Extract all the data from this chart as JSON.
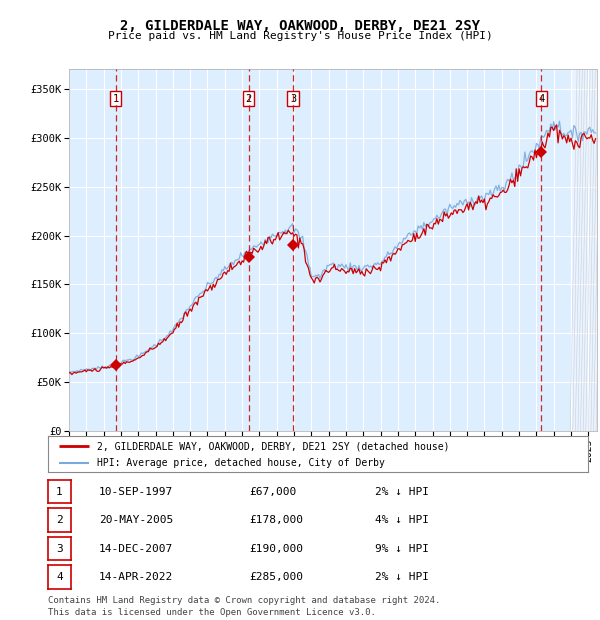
{
  "title": "2, GILDERDALE WAY, OAKWOOD, DERBY, DE21 2SY",
  "subtitle": "Price paid vs. HM Land Registry's House Price Index (HPI)",
  "xlim_start": 1995.0,
  "xlim_end": 2025.5,
  "ylim": [
    0,
    370000
  ],
  "yticks": [
    0,
    50000,
    100000,
    150000,
    200000,
    250000,
    300000,
    350000
  ],
  "ytick_labels": [
    "£0",
    "£50K",
    "£100K",
    "£150K",
    "£200K",
    "£250K",
    "£300K",
    "£350K"
  ],
  "sale_dates": [
    1997.69,
    2005.38,
    2007.95,
    2022.28
  ],
  "sale_prices": [
    67000,
    178000,
    190000,
    285000
  ],
  "sale_labels": [
    "1",
    "2",
    "3",
    "4"
  ],
  "sale_info": [
    {
      "num": "1",
      "date": "10-SEP-1997",
      "price": "£67,000",
      "hpi": "2% ↓ HPI"
    },
    {
      "num": "2",
      "date": "20-MAY-2005",
      "price": "£178,000",
      "hpi": "4% ↓ HPI"
    },
    {
      "num": "3",
      "date": "14-DEC-2007",
      "price": "£190,000",
      "hpi": "9% ↓ HPI"
    },
    {
      "num": "4",
      "date": "14-APR-2022",
      "price": "£285,000",
      "hpi": "2% ↓ HPI"
    }
  ],
  "legend_line1": "2, GILDERDALE WAY, OAKWOOD, DERBY, DE21 2SY (detached house)",
  "legend_line2": "HPI: Average price, detached house, City of Derby",
  "footer": "Contains HM Land Registry data © Crown copyright and database right 2024.\nThis data is licensed under the Open Government Licence v3.0.",
  "hpi_color": "#7aaadd",
  "sale_color": "#cc0000",
  "bg_color": "#ddeeff",
  "grid_color": "#ffffff",
  "dashed_line_color": "#cc0000",
  "anchor_hpi": [
    [
      1995.0,
      60000
    ],
    [
      1996.0,
      63000
    ],
    [
      1997.0,
      65000
    ],
    [
      1997.69,
      68000
    ],
    [
      1998.0,
      70000
    ],
    [
      1999.0,
      76000
    ],
    [
      2000.0,
      88000
    ],
    [
      2001.0,
      103000
    ],
    [
      2002.0,
      128000
    ],
    [
      2003.0,
      148000
    ],
    [
      2004.0,
      165000
    ],
    [
      2005.0,
      180000
    ],
    [
      2005.38,
      183000
    ],
    [
      2006.0,
      192000
    ],
    [
      2007.0,
      203000
    ],
    [
      2007.95,
      208000
    ],
    [
      2008.5,
      195000
    ],
    [
      2009.0,
      160000
    ],
    [
      2009.5,
      158000
    ],
    [
      2010.0,
      170000
    ],
    [
      2011.0,
      168000
    ],
    [
      2012.0,
      167000
    ],
    [
      2013.0,
      172000
    ],
    [
      2014.0,
      190000
    ],
    [
      2015.0,
      205000
    ],
    [
      2016.0,
      215000
    ],
    [
      2017.0,
      228000
    ],
    [
      2018.0,
      235000
    ],
    [
      2019.0,
      240000
    ],
    [
      2020.0,
      248000
    ],
    [
      2021.0,
      268000
    ],
    [
      2022.0,
      292000
    ],
    [
      2022.28,
      297000
    ],
    [
      2022.75,
      312000
    ],
    [
      2023.0,
      315000
    ],
    [
      2023.5,
      308000
    ],
    [
      2024.0,
      302000
    ],
    [
      2024.5,
      305000
    ],
    [
      2025.0,
      307000
    ],
    [
      2025.5,
      308000
    ]
  ],
  "noise_scale": 0.012,
  "noise_seed": 7
}
